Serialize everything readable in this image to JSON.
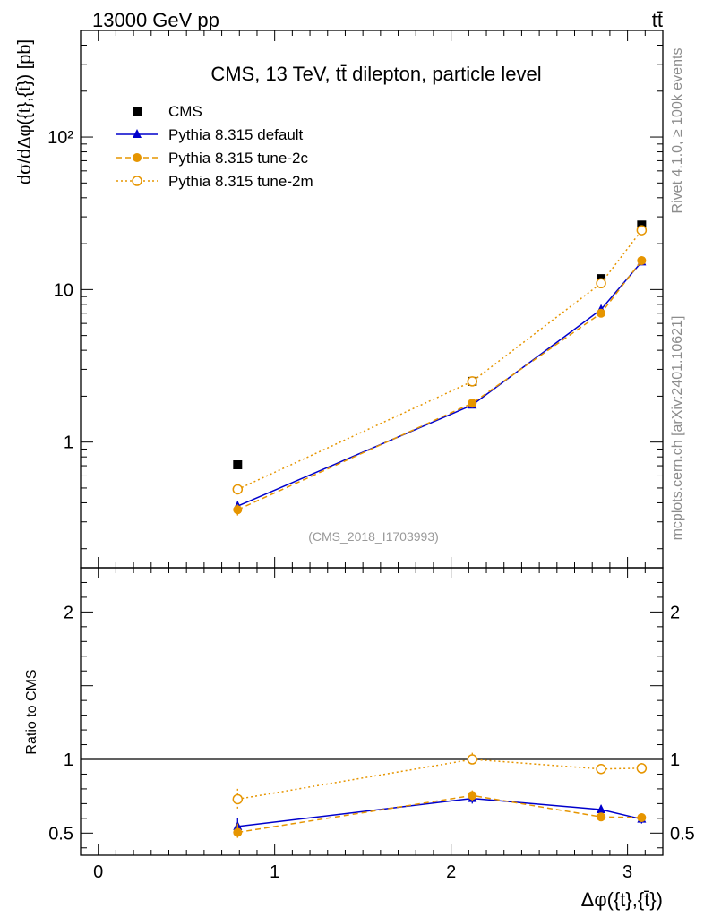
{
  "header": {
    "left": "13000 GeV pp",
    "right": "tt̄"
  },
  "side_labels": {
    "rivet": "Rivet 4.1.0, ≥ 100k events",
    "mcplots": "mcplots.cern.ch [arXiv:2401.10621]"
  },
  "chart_data": [
    {
      "type": "line",
      "title": "CMS, 13 TeV, tt̄ dilepton, particle level",
      "watermark": "(CMS_2018_I1703993)",
      "ylabel": "dσ/dΔφ({t},{t̄}) [pb]",
      "yscale": "log",
      "xlim": [
        -0.1,
        3.2
      ],
      "ylim": [
        0.15,
        500
      ],
      "y_tick_labels": [
        {
          "value": 1,
          "label": "1"
        },
        {
          "value": 10,
          "label": "10"
        },
        {
          "value": 100,
          "label": "10²"
        }
      ],
      "x": [
        0.79,
        2.12,
        2.85,
        3.08
      ],
      "legend_position": "top-left",
      "series": [
        {
          "name": "CMS",
          "color": "#000000",
          "marker": "square",
          "line": "none",
          "values": [
            0.71,
            2.5,
            11.8,
            26.5
          ]
        },
        {
          "name": "Pythia 8.315 default",
          "color": "#0000cc",
          "marker": "triangle",
          "line": "solid",
          "values": [
            0.38,
            1.75,
            7.4,
            15.2
          ],
          "err": [
            0.03,
            0.06,
            0.3,
            0.6
          ]
        },
        {
          "name": "Pythia 8.315 tune-2c",
          "color": "#e69500",
          "marker": "circle",
          "line": "dashed",
          "values": [
            0.36,
            1.8,
            7.0,
            15.5
          ],
          "err": [
            0.03,
            0.06,
            0.3,
            0.6
          ]
        },
        {
          "name": "Pythia 8.315 tune-2m",
          "color": "#e69500",
          "marker": "open-circle",
          "line": "dotted",
          "values": [
            0.49,
            2.5,
            11.0,
            24.5
          ],
          "err": [
            0.03,
            0.07,
            0.4,
            0.8
          ]
        }
      ]
    },
    {
      "type": "line",
      "title": "",
      "ylabel": "Ratio to CMS",
      "xlabel": "Δφ({t},{t̄})",
      "xlim": [
        -0.1,
        3.2
      ],
      "ylim": [
        0.35,
        2.3
      ],
      "x_ticks": [
        0,
        1,
        2,
        3
      ],
      "x_tick_labels": [
        "0",
        "1",
        "2",
        "3"
      ],
      "y_ticks": [
        0.5,
        1,
        2
      ],
      "y_tick_labels": [
        "0.5",
        "1",
        "2"
      ],
      "x": [
        0.79,
        2.12,
        2.85,
        3.08
      ],
      "reference_line": 1,
      "series": [
        {
          "name": "Pythia 8.315 default",
          "color": "#0000cc",
          "marker": "triangle",
          "line": "solid",
          "values": [
            0.545,
            0.735,
            0.66,
            0.595
          ],
          "err": [
            0.06,
            0.035,
            0.03,
            0.03
          ]
        },
        {
          "name": "Pythia 8.315 tune-2c",
          "color": "#e69500",
          "marker": "circle",
          "line": "dashed",
          "values": [
            0.505,
            0.755,
            0.61,
            0.605
          ],
          "err": [
            0.06,
            0.035,
            0.025,
            0.025
          ]
        },
        {
          "name": "Pythia 8.315 tune-2m",
          "color": "#e69500",
          "marker": "open-circle",
          "line": "dotted",
          "values": [
            0.73,
            1.0,
            0.935,
            0.94
          ],
          "err": [
            0.07,
            0.045,
            0.035,
            0.035
          ]
        }
      ]
    }
  ]
}
